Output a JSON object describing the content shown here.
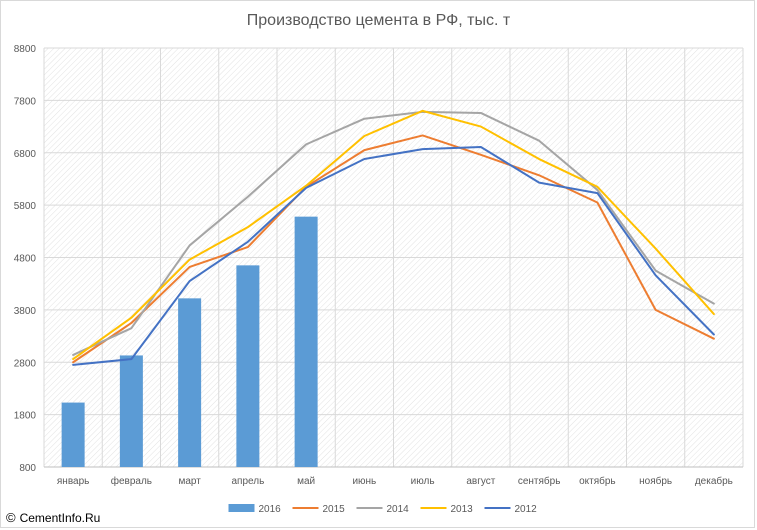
{
  "chart_data": {
    "type": "bar+line",
    "title": "Производство цемента в РФ, тыс. т",
    "categories": [
      "январь",
      "февраль",
      "март",
      "апрель",
      "май",
      "июнь",
      "июль",
      "август",
      "сентябрь",
      "октябрь",
      "ноябрь",
      "декабрь"
    ],
    "ylim": [
      800,
      8800
    ],
    "yticks": [
      800,
      1800,
      2800,
      3800,
      4800,
      5800,
      6800,
      7800,
      8800
    ],
    "grid": true,
    "legend_position": "bottom",
    "series": [
      {
        "name": "2016",
        "kind": "bar",
        "color": "#5b9bd5",
        "values": [
          2030,
          2930,
          4020,
          4650,
          5580,
          null,
          null,
          null,
          null,
          null,
          null,
          null
        ]
      },
      {
        "name": "2015",
        "kind": "line",
        "color": "#ed7d31",
        "values": [
          2800,
          3550,
          4620,
          5000,
          6150,
          6850,
          7130,
          6760,
          6370,
          5850,
          3800,
          3250
        ]
      },
      {
        "name": "2014",
        "kind": "line",
        "color": "#a5a5a5",
        "values": [
          2940,
          3450,
          5030,
          5960,
          6960,
          7450,
          7580,
          7560,
          7030,
          6090,
          4550,
          3920
        ]
      },
      {
        "name": "2013",
        "kind": "line",
        "color": "#ffc000",
        "values": [
          2860,
          3650,
          4760,
          5380,
          6170,
          7120,
          7600,
          7300,
          6680,
          6150,
          4970,
          3720
        ]
      },
      {
        "name": "2012",
        "kind": "line",
        "color": "#4472c4",
        "values": [
          2750,
          2860,
          4350,
          5100,
          6130,
          6680,
          6870,
          6910,
          6230,
          6030,
          4460,
          3330
        ]
      }
    ]
  },
  "watermark": {
    "copy": "©",
    "text": "CementInfo.Ru"
  }
}
